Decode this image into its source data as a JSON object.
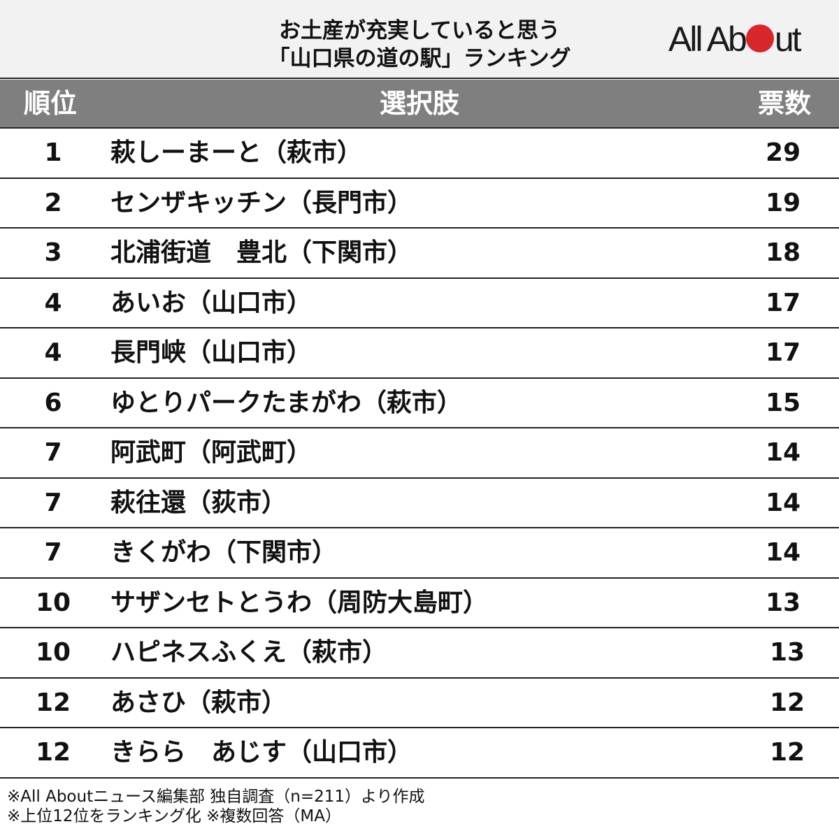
{
  "header": {
    "title_line1": "お土産が充実していると思う",
    "title_line2": "「山口県の道の駅」ランキング",
    "logo_text_left": "All Ab",
    "logo_text_right": "ut",
    "logo_dot_color": "#d9262a"
  },
  "table": {
    "columns": {
      "rank": "順位",
      "choice": "選択肢",
      "votes": "票数"
    },
    "header_bg": "#7f7f7f",
    "rows": [
      {
        "rank": "1",
        "name": "萩しーまーと（萩市）",
        "votes": "29"
      },
      {
        "rank": "2",
        "name": "センザキッチン（長門市）",
        "votes": "19"
      },
      {
        "rank": "3",
        "name": "北浦街道　豊北（下関市）",
        "votes": "18"
      },
      {
        "rank": "4",
        "name": "あいお（山口市）",
        "votes": "17"
      },
      {
        "rank": "4",
        "name": "長門峡（山口市）",
        "votes": "17"
      },
      {
        "rank": "6",
        "name": "ゆとりパークたまがわ（萩市）",
        "votes": "15"
      },
      {
        "rank": "7",
        "name": "阿武町（阿武町）",
        "votes": "14"
      },
      {
        "rank": "7",
        "name": "萩往還（荻市）",
        "votes": "14"
      },
      {
        "rank": "7",
        "name": "きくがわ（下関市）",
        "votes": "14"
      },
      {
        "rank": "10",
        "name": "サザンセトとうわ（周防大島町）",
        "votes": "13"
      },
      {
        "rank": "10",
        "name": "ハピネスふくえ（萩市）",
        "votes": "13"
      },
      {
        "rank": "12",
        "name": "あさひ（萩市）",
        "votes": "12"
      },
      {
        "rank": "12",
        "name": "きらら　あじす（山口市）",
        "votes": "12"
      }
    ]
  },
  "footer": {
    "note1": "※All Aboutニュース編集部 独自調査（n=211）より作成",
    "note2": "※上位12位をランキング化 ※複数回答（MA）"
  },
  "chart_data": {
    "type": "table",
    "title": "お土産が充実していると思う「山口県の道の駅」ランキング",
    "columns": [
      "順位",
      "選択肢",
      "票数"
    ],
    "categories": [
      "萩しーまーと（萩市）",
      "センザキッチン（長門市）",
      "北浦街道　豊北（下関市）",
      "あいお（山口市）",
      "長門峡（山口市）",
      "ゆとりパークたまがわ（萩市）",
      "阿武町（阿武町）",
      "萩往還（荻市）",
      "きくがわ（下関市）",
      "サザンセトとうわ（周防大島町）",
      "ハピネスふくえ（萩市）",
      "あさひ（萩市）",
      "きらら　あじす（山口市）"
    ],
    "ranks": [
      1,
      2,
      3,
      4,
      4,
      6,
      7,
      7,
      7,
      10,
      10,
      12,
      12
    ],
    "values": [
      29,
      19,
      18,
      17,
      17,
      15,
      14,
      14,
      14,
      13,
      13,
      12,
      12
    ],
    "ylabel": "票数",
    "notes": [
      "※All Aboutニュース編集部 独自調査（n=211）より作成",
      "※上位12位をランキング化 ※複数回答（MA）"
    ]
  }
}
